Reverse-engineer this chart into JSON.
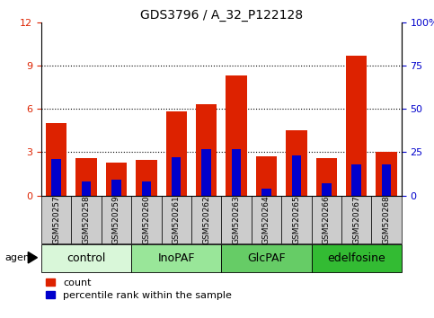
{
  "title": "GDS3796 / A_32_P122128",
  "samples": [
    "GSM520257",
    "GSM520258",
    "GSM520259",
    "GSM520260",
    "GSM520261",
    "GSM520262",
    "GSM520263",
    "GSM520264",
    "GSM520265",
    "GSM520266",
    "GSM520267",
    "GSM520268"
  ],
  "count_values": [
    5.0,
    2.6,
    2.3,
    2.5,
    5.8,
    6.3,
    8.3,
    2.7,
    4.5,
    2.6,
    9.7,
    3.0
  ],
  "percentile_values": [
    21,
    8,
    9,
    8,
    22,
    27,
    27,
    4,
    23,
    7,
    18,
    18
  ],
  "groups": [
    {
      "label": "control",
      "start": 0,
      "end": 3,
      "color": "#d9f7d9"
    },
    {
      "label": "InoPAF",
      "start": 3,
      "end": 6,
      "color": "#99e699"
    },
    {
      "label": "GlcPAF",
      "start": 6,
      "end": 9,
      "color": "#66cc66"
    },
    {
      "label": "edelfosine",
      "start": 9,
      "end": 12,
      "color": "#33bb33"
    }
  ],
  "ylim_left": [
    0,
    12
  ],
  "ylim_right": [
    0,
    100
  ],
  "yticks_left": [
    0,
    3,
    6,
    9,
    12
  ],
  "yticks_right": [
    0,
    25,
    50,
    75,
    100
  ],
  "ylabel_right_labels": [
    "0",
    "25",
    "50",
    "75",
    "100%"
  ],
  "bar_color_red": "#dd2200",
  "bar_color_blue": "#0000cc",
  "bar_width": 0.7,
  "tick_label_color": "#cccccc",
  "legend_count_label": "count",
  "legend_pct_label": "percentile rank within the sample",
  "title_fontsize": 10,
  "axis_fontsize": 8,
  "sample_fontsize": 6.5,
  "group_fontsize": 9,
  "legend_fontsize": 8
}
